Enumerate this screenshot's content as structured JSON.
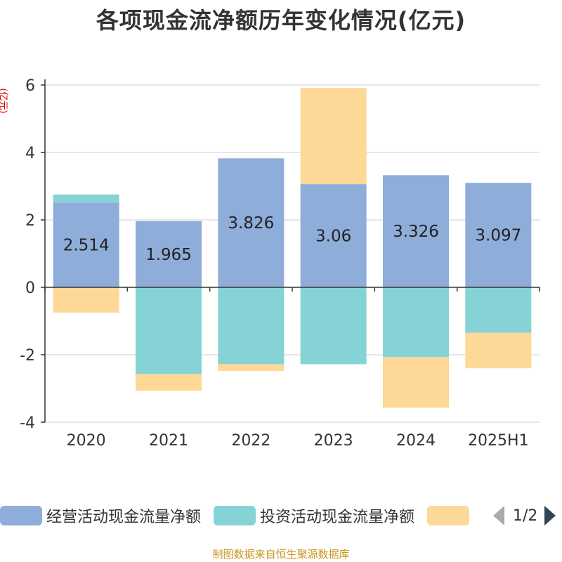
{
  "title": "各项现金流净额历年变化情况(亿元)",
  "unit_label": "(亿元)",
  "source": "制图数据来自恒生聚源数据库",
  "legend": {
    "page_indicator": "1/2"
  },
  "chart_data": {
    "type": "bar",
    "stacked": true,
    "categories": [
      "2020",
      "2021",
      "2022",
      "2023",
      "2024",
      "2025H1"
    ],
    "ylim": [
      -4,
      6
    ],
    "yticks": [
      -4,
      -2,
      0,
      2,
      4,
      6
    ],
    "grid": true,
    "legend_position": "bottom",
    "series": [
      {
        "name": "经营活动现金流量净额",
        "color": "#8eadd9",
        "values": [
          2.514,
          1.965,
          3.826,
          3.06,
          3.326,
          3.097
        ]
      },
      {
        "name": "投资活动现金流量净额",
        "color": "#86d3d6",
        "values": [
          0.24,
          -2.57,
          -2.28,
          -2.28,
          -2.07,
          -1.35
        ]
      },
      {
        "name": "",
        "color": "#fdd896",
        "values": [
          -0.75,
          -0.5,
          -0.2,
          2.85,
          -1.5,
          -1.05
        ]
      }
    ],
    "data_labels": [
      "2.514",
      "1.965",
      "3.826",
      "3.06",
      "3.326",
      "3.097"
    ]
  }
}
